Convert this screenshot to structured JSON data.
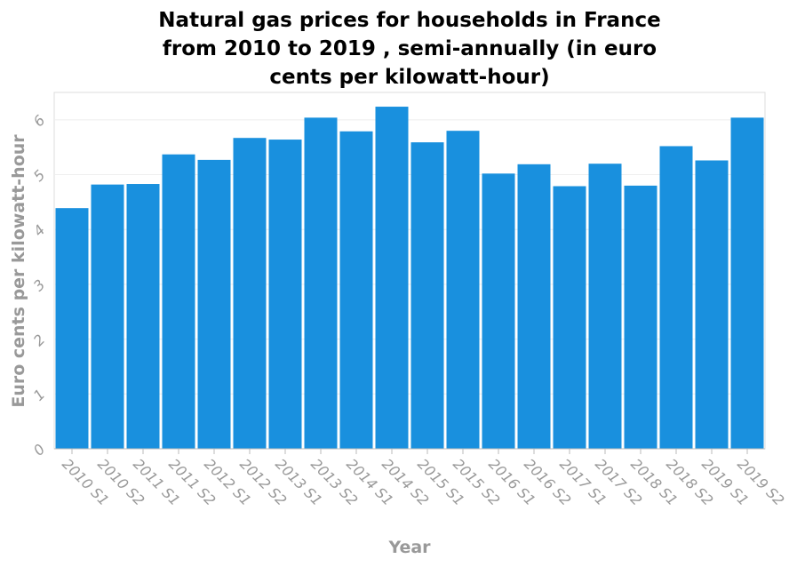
{
  "chart_data": {
    "type": "bar",
    "title": "Natural gas prices for households in France from 2010 to 2019 , semi-annually (in euro cents per kilowatt-hour)",
    "title_lines": [
      "Natural gas prices for households in France",
      "from 2010 to 2019 , semi-annually (in euro",
      "cents per kilowatt-hour)"
    ],
    "xlabel": "Year",
    "ylabel": "Euro cents per kilowatt-hour",
    "categories": [
      "2010 S1",
      "2010 S2",
      "2011 S1",
      "2011 S2",
      "2012 S1",
      "2012 S2",
      "2013 S1",
      "2013 S2",
      "2014 S1",
      "2014 S2",
      "2015 S1",
      "2015 S2",
      "2016 S1",
      "2016 S2",
      "2017 S1",
      "2017 S2",
      "2018 S1",
      "2018 S2",
      "2019 S1",
      "2019 S2"
    ],
    "values": [
      4.39,
      4.82,
      4.83,
      5.37,
      5.27,
      5.67,
      5.64,
      6.04,
      5.79,
      6.24,
      5.59,
      5.8,
      5.02,
      5.19,
      4.79,
      5.2,
      4.8,
      5.52,
      5.26,
      6.04
    ],
    "ylim": [
      0,
      6.5
    ],
    "yticks": [
      0,
      1,
      2,
      3,
      4,
      5,
      6
    ],
    "grid": true,
    "legend": "none",
    "bar_color": "#1990de"
  }
}
